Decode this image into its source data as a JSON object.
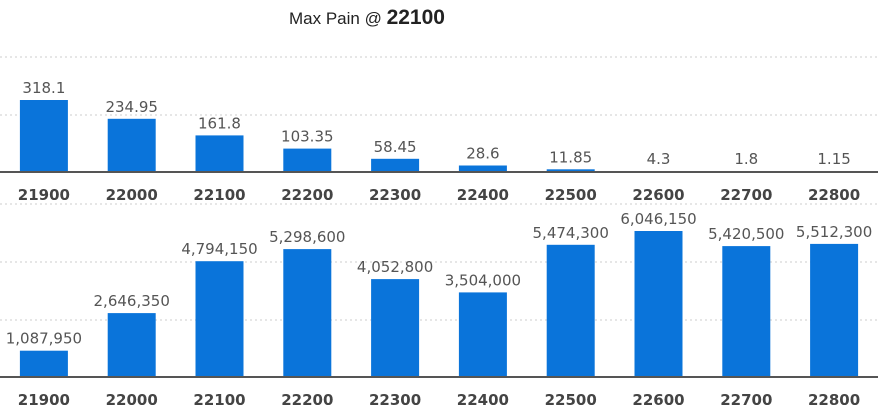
{
  "title": {
    "prefix": "Max Pain @ ",
    "value": "22100"
  },
  "colors": {
    "bar": "#0a74da",
    "axis": "#555555",
    "grid": "#cccccc"
  },
  "chart_data": [
    {
      "type": "bar",
      "title": "",
      "xlabel": "",
      "ylabel": "",
      "grid": true,
      "categories": [
        "21900",
        "22000",
        "22100",
        "22200",
        "22300",
        "22400",
        "22500",
        "22600",
        "22700",
        "22800"
      ],
      "values": [
        318.1,
        234.95,
        161.8,
        103.35,
        58.45,
        28.6,
        11.85,
        4.3,
        1.8,
        1.15
      ],
      "labels": [
        "318.1",
        "234.95",
        "161.8",
        "103.35",
        "58.45",
        "28.6",
        "11.85",
        "4.3",
        "1.8",
        "1.15"
      ],
      "ylim": [
        0,
        450
      ]
    },
    {
      "type": "bar",
      "title": "",
      "xlabel": "",
      "ylabel": "",
      "grid": true,
      "categories": [
        "21900",
        "22000",
        "22100",
        "22200",
        "22300",
        "22400",
        "22500",
        "22600",
        "22700",
        "22800"
      ],
      "values": [
        1087950,
        2646350,
        4794150,
        5298600,
        4052800,
        3504000,
        5474300,
        6046150,
        5420500,
        5512300
      ],
      "labels": [
        "1,087,950",
        "2,646,350",
        "4,794,150",
        "5,298,600",
        "4,052,800",
        "3,504,000",
        "5,474,300",
        "6,046,150",
        "5,420,500",
        "5,512,300"
      ],
      "ylim": [
        0,
        7500000
      ]
    }
  ]
}
